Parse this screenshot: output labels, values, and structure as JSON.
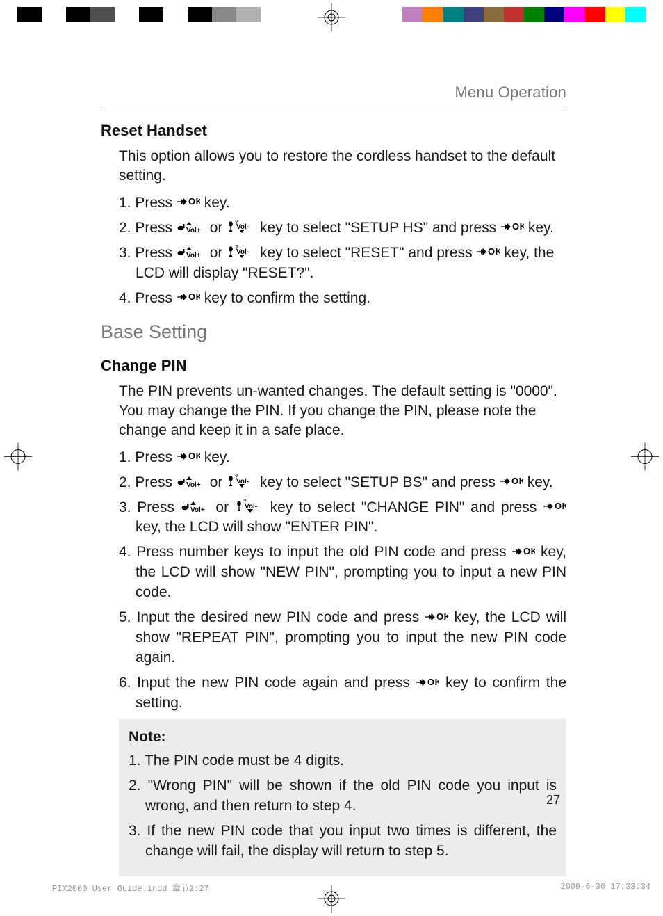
{
  "header": {
    "title": "Menu Operation"
  },
  "crop_colors_left": [
    "#000000",
    "#ffffff",
    "#000000",
    "#4f4f4f",
    "#ffffff",
    "#000000",
    "#ffffff",
    "#000000",
    "#888888",
    "#b0b0b0"
  ],
  "crop_colors_right": [
    "#c080c0",
    "#ff7f00",
    "#008080",
    "#404080",
    "#8a6d3b",
    "#c03030",
    "#008000",
    "#000080",
    "#ff00ff",
    "#ff0000",
    "#ffff00",
    "#00ffff"
  ],
  "section1": {
    "heading": "Reset Handset",
    "intro": "This option allows you to restore the cordless handset to the default setting.",
    "steps": [
      {
        "pre": "1. Press ",
        "icons": [
          "ok"
        ],
        "post": " key."
      },
      {
        "pre": "2. Press ",
        "icons": [
          "volup",
          "or",
          "voldn"
        ],
        "mid": " key to select \"SETUP HS\" and press ",
        "icons2": [
          "ok"
        ],
        "post": " key."
      },
      {
        "pre": "3. Press ",
        "icons": [
          "volup",
          "or",
          "voldn"
        ],
        "mid": " key to select \"RESET\" and press ",
        "icons2": [
          "ok"
        ],
        "post": " key, the LCD will display \"RESET?\"."
      },
      {
        "pre": "4. Press ",
        "icons": [
          "ok"
        ],
        "post": " key to confirm the setting."
      }
    ]
  },
  "section2_heading": "Base Setting",
  "section3": {
    "heading": "Change PIN",
    "intro": "The PIN prevents un-wanted changes. The default setting is \"0000\". You may change the PIN. If you change the PIN, please note the change and keep it in a safe place.",
    "steps": [
      {
        "pre": "1. Press ",
        "icons": [
          "ok"
        ],
        "post": " key."
      },
      {
        "pre": "2. Press ",
        "icons": [
          "volup",
          "or",
          "voldn"
        ],
        "mid": " key to select \"SETUP BS\" and press ",
        "icons2": [
          "ok"
        ],
        "post": " key."
      },
      {
        "pre": "3. Press ",
        "icons": [
          "volup",
          "or",
          "voldn"
        ],
        "mid": " key to select \"CHANGE PIN\" and press ",
        "icons2": [
          "ok"
        ],
        "post": " key, the LCD will show \"ENTER PIN\".",
        "just": true
      },
      {
        "pre": "4. Press number keys to input the old PIN code and press ",
        "icons": [
          "ok"
        ],
        "post": " key, the LCD will show \"NEW PIN\", prompting you to input a new PIN code.",
        "just": true
      },
      {
        "pre": "5. Input the desired new PIN code and press ",
        "icons": [
          "ok"
        ],
        "post": " key, the LCD will show \"REPEAT PIN\", prompting you to input the new PIN code again.",
        "just": true
      },
      {
        "pre": "6. Input the new PIN code again and press ",
        "icons": [
          "ok"
        ],
        "post": " key to confirm the setting.",
        "just": true
      }
    ]
  },
  "note": {
    "title": "Note:",
    "items": [
      "1. The PIN code must be 4 digits.",
      "2. \"Wrong PIN\" will be shown if the old PIN code you input is wrong, and then return to step 4.",
      "3. If the new PIN code that you input two times is different, the change will fail, the display will return to step 5."
    ]
  },
  "page_number": "27",
  "footer": {
    "left": "PIX2000 User Guide.indd   章节2:27",
    "right": "2009-6-30   17:33:34"
  },
  "or_text": " or "
}
